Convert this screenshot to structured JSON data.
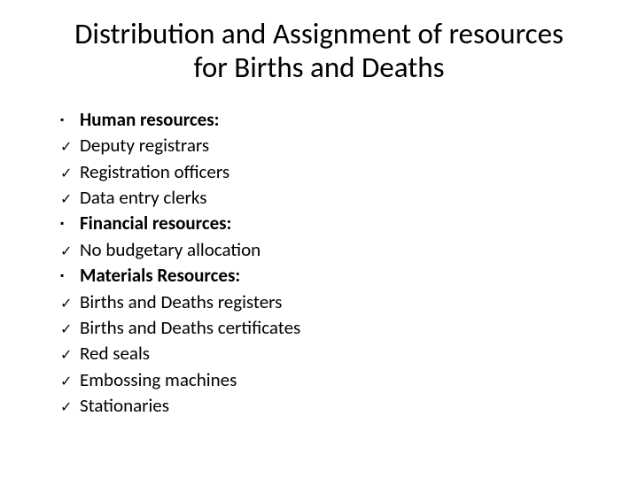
{
  "slide": {
    "title": "Distribution and Assignment of resources for Births and Deaths",
    "items": [
      {
        "bullet": "square",
        "text": "Human resources:",
        "bold": true
      },
      {
        "bullet": "check",
        "text": "Deputy registrars",
        "bold": false
      },
      {
        "bullet": "check",
        "text": "Registration officers",
        "bold": false
      },
      {
        "bullet": "check",
        "text": "Data entry clerks",
        "bold": false
      },
      {
        "bullet": "square",
        "text": "Financial resources:",
        "bold": true
      },
      {
        "bullet": "check",
        "text": "No budgetary allocation",
        "bold": false
      },
      {
        "bullet": "square",
        "text": "Materials Resources:",
        "bold": true
      },
      {
        "bullet": "check",
        "text": "Births and Deaths registers",
        "bold": false
      },
      {
        "bullet": "check",
        "text": "Births and Deaths certificates",
        "bold": false
      },
      {
        "bullet": "check",
        "text": "Red seals",
        "bold": false
      },
      {
        "bullet": "check",
        "text": "Embossing machines",
        "bold": false
      },
      {
        "bullet": "check",
        "text": "Stationaries",
        "bold": false
      }
    ]
  },
  "glyphs": {
    "square": "▪",
    "check": "✓"
  },
  "styling": {
    "background_color": "#ffffff",
    "text_color": "#000000",
    "title_fontsize": 33,
    "body_fontsize": 21,
    "font_family": "Calibri"
  }
}
